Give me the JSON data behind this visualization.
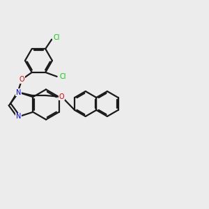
{
  "background_color": "#ececec",
  "bond_color": "#1a1a1a",
  "nitrogen_color": "#0000ee",
  "oxygen_color": "#ee0000",
  "chlorine_color": "#00cc00",
  "line_width": 1.6,
  "fig_size": [
    3.0,
    3.0
  ],
  "dpi": 100,
  "xlim": [
    0,
    10
  ],
  "ylim": [
    0,
    10
  ]
}
